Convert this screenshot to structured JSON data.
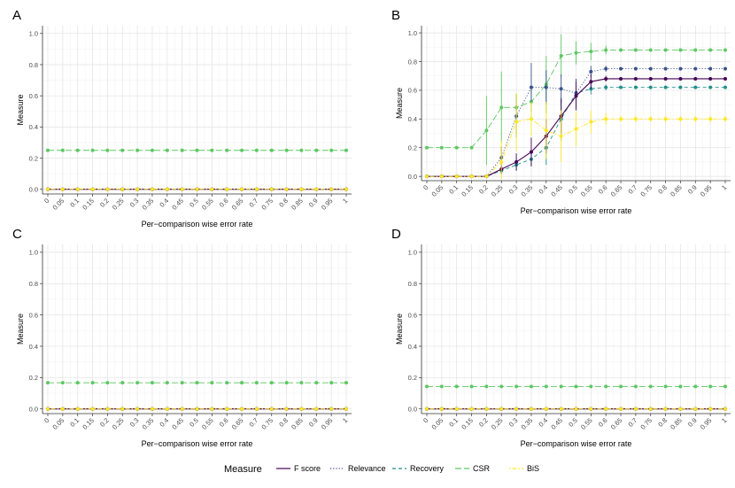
{
  "chart_data": {
    "type": "line",
    "shared": {
      "xlabel": "Per−comparison wise error rate",
      "ylabel": "Measure",
      "x_tick_labels": [
        "0",
        "0.05",
        "0.1",
        "0.15",
        "0.2",
        "0.25",
        "0.3",
        "0.35",
        "0.4",
        "0.45",
        "0.5",
        "0.55",
        "0.6",
        "0.65",
        "0.7",
        "0.75",
        "0.8",
        "0.85",
        "0.9",
        "0.95",
        "1"
      ],
      "y_tick_labels": [
        "0.0",
        "0.2",
        "0.4",
        "0.6",
        "0.8",
        "1.0"
      ],
      "y_ticks": [
        0,
        0.2,
        0.4,
        0.6,
        0.8,
        1.0
      ],
      "ylim": [
        -0.03,
        1.05
      ]
    },
    "legend": {
      "title": "Measure",
      "position": "bottom",
      "entries": [
        {
          "name": "F score",
          "color": "#440154",
          "dash": "solid"
        },
        {
          "name": "Relevance",
          "color": "#3b528b",
          "dash": "dotted"
        },
        {
          "name": "Recovery",
          "color": "#21908c",
          "dash": "dashed"
        },
        {
          "name": "CSR",
          "color": "#5dc863",
          "dash": "longdash"
        },
        {
          "name": "BiS",
          "color": "#fde725",
          "dash": "dotdash"
        }
      ]
    },
    "panels": [
      {
        "label": "A",
        "series": [
          {
            "name": "F score",
            "values": [
              0,
              0,
              0,
              0,
              0,
              0,
              0,
              0,
              0,
              0,
              0,
              0,
              0,
              0,
              0,
              0,
              0,
              0,
              0,
              0,
              0
            ]
          },
          {
            "name": "Relevance",
            "values": [
              0,
              0,
              0,
              0,
              0,
              0,
              0,
              0,
              0,
              0,
              0,
              0,
              0,
              0,
              0,
              0,
              0,
              0,
              0,
              0,
              0
            ]
          },
          {
            "name": "Recovery",
            "values": [
              0,
              0,
              0,
              0,
              0,
              0,
              0,
              0,
              0,
              0,
              0,
              0,
              0,
              0,
              0,
              0,
              0,
              0,
              0,
              0,
              0
            ]
          },
          {
            "name": "CSR",
            "values": [
              0.25,
              0.25,
              0.25,
              0.25,
              0.25,
              0.25,
              0.25,
              0.25,
              0.25,
              0.25,
              0.25,
              0.25,
              0.25,
              0.25,
              0.25,
              0.25,
              0.25,
              0.25,
              0.25,
              0.25,
              0.25
            ]
          },
          {
            "name": "BiS",
            "values": [
              0,
              0,
              0,
              0,
              0,
              0,
              0,
              0,
              0,
              0,
              0,
              0,
              0,
              0,
              0,
              0,
              0,
              0,
              0,
              0,
              0
            ]
          }
        ]
      },
      {
        "label": "B",
        "series": [
          {
            "name": "F score",
            "values": [
              0,
              0,
              0,
              0,
              0,
              0.05,
              0.1,
              0.17,
              0.28,
              0.42,
              0.56,
              0.66,
              0.68,
              0.68,
              0.68,
              0.68,
              0.68,
              0.68,
              0.68,
              0.68,
              0.68
            ],
            "errors": [
              0,
              0,
              0,
              0,
              0,
              0.03,
              0.06,
              0.1,
              0.12,
              0.12,
              0.1,
              0.05,
              0.02,
              0,
              0,
              0,
              0,
              0,
              0,
              0,
              0
            ]
          },
          {
            "name": "Relevance",
            "values": [
              0,
              0,
              0,
              0,
              0,
              0.13,
              0.42,
              0.62,
              0.62,
              0.61,
              0.58,
              0.73,
              0.75,
              0.75,
              0.75,
              0.75,
              0.75,
              0.75,
              0.75,
              0.75,
              0.75
            ],
            "errors": [
              0,
              0,
              0,
              0,
              0,
              0.08,
              0.15,
              0.17,
              0.12,
              0.1,
              0.1,
              0.04,
              0.02,
              0,
              0,
              0,
              0,
              0,
              0,
              0,
              0
            ]
          },
          {
            "name": "Recovery",
            "values": [
              0,
              0,
              0,
              0,
              0,
              0.04,
              0.08,
              0.12,
              0.2,
              0.4,
              0.58,
              0.61,
              0.62,
              0.62,
              0.62,
              0.62,
              0.62,
              0.62,
              0.62,
              0.62,
              0.62
            ],
            "errors": [
              0,
              0,
              0,
              0,
              0,
              0.03,
              0.04,
              0.05,
              0.12,
              0.15,
              0.1,
              0.04,
              0.02,
              0,
              0,
              0,
              0,
              0,
              0,
              0,
              0
            ]
          },
          {
            "name": "CSR",
            "values": [
              0.2,
              0.2,
              0.2,
              0.2,
              0.32,
              0.48,
              0.48,
              0.52,
              0.64,
              0.84,
              0.86,
              0.87,
              0.88,
              0.88,
              0.88,
              0.88,
              0.88,
              0.88,
              0.88,
              0.88,
              0.88
            ],
            "errors": [
              0,
              0,
              0,
              0,
              0.24,
              0.25,
              0.1,
              0.12,
              0.2,
              0.15,
              0.08,
              0.06,
              0.03,
              0,
              0,
              0,
              0,
              0,
              0,
              0,
              0
            ]
          },
          {
            "name": "BiS",
            "values": [
              0,
              0,
              0,
              0,
              0,
              0.1,
              0.38,
              0.4,
              0.32,
              0.28,
              0.33,
              0.38,
              0.4,
              0.4,
              0.4,
              0.4,
              0.4,
              0.4,
              0.4,
              0.4,
              0.4
            ],
            "errors": [
              0,
              0,
              0,
              0,
              0,
              0.15,
              0.2,
              0.12,
              0.2,
              0.18,
              0.12,
              0.08,
              0.04,
              0.02,
              0.02,
              0.02,
              0.02,
              0.02,
              0.02,
              0.02,
              0.02
            ]
          }
        ]
      },
      {
        "label": "C",
        "series": [
          {
            "name": "F score",
            "values": [
              0,
              0,
              0,
              0,
              0,
              0,
              0,
              0,
              0,
              0,
              0,
              0,
              0,
              0,
              0,
              0,
              0,
              0,
              0,
              0,
              0
            ]
          },
          {
            "name": "Relevance",
            "values": [
              0,
              0,
              0,
              0,
              0,
              0,
              0,
              0,
              0,
              0,
              0,
              0,
              0,
              0,
              0,
              0,
              0,
              0,
              0,
              0,
              0
            ]
          },
          {
            "name": "Recovery",
            "values": [
              0,
              0,
              0,
              0,
              0,
              0,
              0,
              0,
              0,
              0,
              0,
              0,
              0,
              0,
              0,
              0,
              0,
              0,
              0,
              0,
              0
            ]
          },
          {
            "name": "CSR",
            "values": [
              0.167,
              0.167,
              0.167,
              0.167,
              0.167,
              0.167,
              0.167,
              0.167,
              0.167,
              0.167,
              0.167,
              0.167,
              0.167,
              0.167,
              0.167,
              0.167,
              0.167,
              0.167,
              0.167,
              0.167,
              0.167
            ]
          },
          {
            "name": "BiS",
            "values": [
              0,
              0,
              0,
              0,
              0,
              0,
              0,
              0,
              0,
              0,
              0,
              0,
              0,
              0,
              0,
              0,
              0,
              0,
              0,
              0,
              0
            ]
          }
        ]
      },
      {
        "label": "D",
        "series": [
          {
            "name": "F score",
            "values": [
              0,
              0,
              0,
              0,
              0,
              0,
              0,
              0,
              0,
              0,
              0,
              0,
              0,
              0,
              0,
              0,
              0,
              0,
              0,
              0,
              0
            ]
          },
          {
            "name": "Relevance",
            "values": [
              0,
              0,
              0,
              0,
              0,
              0,
              0,
              0,
              0,
              0,
              0,
              0,
              0,
              0,
              0,
              0,
              0,
              0,
              0,
              0,
              0
            ]
          },
          {
            "name": "Recovery",
            "values": [
              0,
              0,
              0,
              0,
              0,
              0,
              0,
              0,
              0,
              0,
              0,
              0,
              0,
              0,
              0,
              0,
              0,
              0,
              0,
              0,
              0
            ]
          },
          {
            "name": "CSR",
            "values": [
              0.143,
              0.143,
              0.143,
              0.143,
              0.143,
              0.143,
              0.143,
              0.143,
              0.143,
              0.143,
              0.143,
              0.143,
              0.143,
              0.143,
              0.143,
              0.143,
              0.143,
              0.143,
              0.143,
              0.143,
              0.143
            ]
          },
          {
            "name": "BiS",
            "values": [
              0,
              0,
              0,
              0,
              0,
              0,
              0,
              0,
              0,
              0,
              0,
              0,
              0,
              0,
              0,
              0,
              0,
              0,
              0,
              0,
              0
            ]
          }
        ]
      }
    ]
  }
}
